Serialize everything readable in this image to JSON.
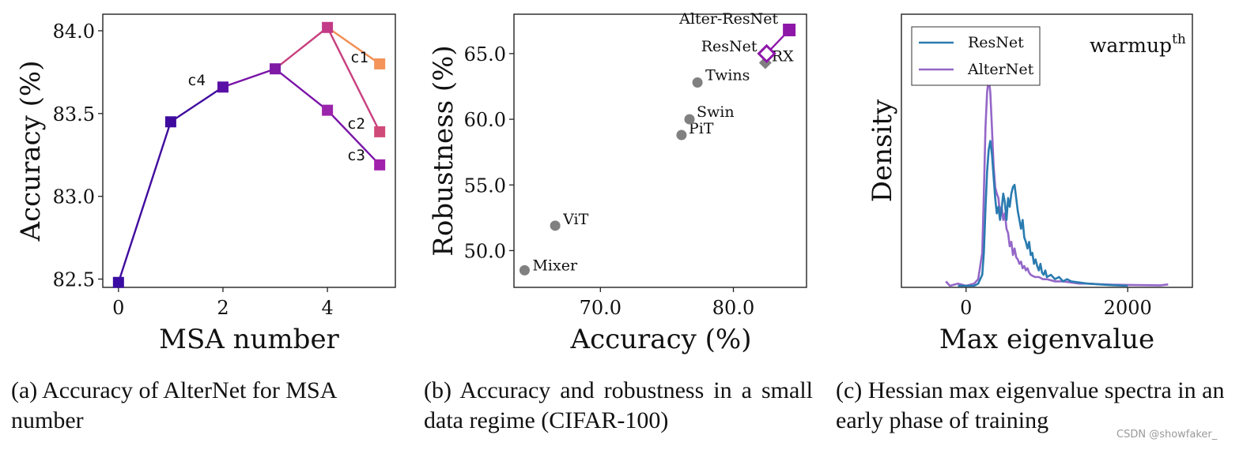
{
  "chart_data": [
    {
      "type": "line",
      "panel": "a",
      "xlabel": "MSA number",
      "ylabel": "Accuracy (%)",
      "xlim": [
        -0.3,
        5.3
      ],
      "ylim": [
        82.45,
        84.1
      ],
      "xticks": [
        "0",
        "2",
        "4"
      ],
      "xtick_values": [
        0,
        2,
        4
      ],
      "yticks": [
        "82.5",
        "83.0",
        "83.5",
        "84.0"
      ],
      "ytick_values": [
        82.5,
        83.0,
        83.5,
        84.0
      ],
      "series": [
        {
          "name": "c4",
          "color": "#3f0b9e",
          "x": [
            0,
            1,
            2
          ],
          "values": [
            82.48,
            83.45,
            83.66
          ]
        },
        {
          "name": "c3",
          "color": "#7a14a8",
          "x": [
            2,
            3,
            4,
            5
          ],
          "values": [
            83.66,
            83.77,
            83.52,
            83.19
          ]
        },
        {
          "name": "c2",
          "color": "#c7407e",
          "x": [
            3,
            4,
            5
          ],
          "values": [
            83.77,
            84.02,
            83.39
          ]
        },
        {
          "name": "c1",
          "color": "#f08d52",
          "x": [
            4,
            5
          ],
          "values": [
            84.02,
            83.8
          ]
        }
      ],
      "markers": [
        {
          "x": 0,
          "y": 82.48,
          "color": "#3a0ca3"
        },
        {
          "x": 1,
          "y": 83.45,
          "color": "#3f0b9e"
        },
        {
          "x": 2,
          "y": 83.66,
          "color": "#5a10a6"
        },
        {
          "x": 3,
          "y": 83.77,
          "color": "#7e1aa6"
        },
        {
          "x": 4,
          "y": 83.52,
          "color": "#9a24ab"
        },
        {
          "x": 4,
          "y": 84.02,
          "color": "#c33a86"
        },
        {
          "x": 5,
          "y": 83.19,
          "color": "#a021ac"
        },
        {
          "x": 5,
          "y": 83.39,
          "color": "#d04a79"
        },
        {
          "x": 5,
          "y": 83.8,
          "color": "#f4935a"
        }
      ],
      "labels": [
        "c1",
        "c2",
        "c3",
        "c4"
      ]
    },
    {
      "type": "scatter",
      "panel": "b",
      "xlabel": "Accuracy (%)",
      "ylabel": "Robustness (%)",
      "xlim": [
        63.5,
        85.5
      ],
      "ylim": [
        47.2,
        68.0
      ],
      "xticks": [
        "70.0",
        "80.0"
      ],
      "xtick_values": [
        70.0,
        80.0
      ],
      "yticks": [
        "50.0",
        "55.0",
        "60.0",
        "65.0"
      ],
      "ytick_values": [
        50.0,
        55.0,
        60.0,
        65.0
      ],
      "points": [
        {
          "label": "Mixer",
          "x": 64.3,
          "y": 48.5,
          "color": "#808080"
        },
        {
          "label": "ViT",
          "x": 66.6,
          "y": 51.9,
          "color": "#808080"
        },
        {
          "label": "PiT",
          "x": 76.1,
          "y": 58.8,
          "color": "#808080"
        },
        {
          "label": "Swin",
          "x": 76.7,
          "y": 60.0,
          "color": "#808080"
        },
        {
          "label": "Twins",
          "x": 77.3,
          "y": 62.8,
          "color": "#808080"
        },
        {
          "label": "RX",
          "x": 82.4,
          "y": 64.3,
          "color": "#808080"
        },
        {
          "label": "ResNet",
          "x": 82.5,
          "y": 65.0,
          "color": "#8e17a8"
        },
        {
          "label": "Alter-ResNet",
          "x": 84.2,
          "y": 66.8,
          "color": "#8e17a8"
        }
      ]
    },
    {
      "type": "line",
      "panel": "c",
      "xlabel": "Max eigenvalue",
      "ylabel": "Density",
      "annotation": "warmup",
      "annotation_sup": "th",
      "xlim": [
        -800,
        2800
      ],
      "ylim": [
        0,
        1.0
      ],
      "xticks": [
        "0",
        "2000"
      ],
      "xtick_values": [
        0,
        2000
      ],
      "series": [
        {
          "name": "ResNet",
          "color": "#2a7bb0",
          "x": [
            -100,
            0,
            100,
            150,
            200,
            220,
            240,
            260,
            280,
            300,
            320,
            340,
            360,
            380,
            400,
            420,
            440,
            460,
            480,
            500,
            520,
            540,
            560,
            580,
            600,
            620,
            640,
            660,
            680,
            700,
            720,
            740,
            760,
            780,
            800,
            820,
            840,
            860,
            880,
            900,
            920,
            940,
            960,
            980,
            1000,
            1050,
            1100,
            1150,
            1200,
            1250,
            1300,
            1400,
            1500,
            1600,
            1700,
            1800,
            2000
          ],
          "values": [
            0,
            0,
            0,
            0.01,
            0.05,
            0.15,
            0.35,
            0.52,
            0.62,
            0.66,
            0.6,
            0.5,
            0.4,
            0.33,
            0.36,
            0.3,
            0.35,
            0.42,
            0.38,
            0.3,
            0.4,
            0.36,
            0.42,
            0.45,
            0.46,
            0.4,
            0.34,
            0.3,
            0.26,
            0.3,
            0.22,
            0.2,
            0.17,
            0.2,
            0.14,
            0.15,
            0.1,
            0.12,
            0.09,
            0.07,
            0.1,
            0.06,
            0.05,
            0.07,
            0.04,
            0.05,
            0.03,
            0.04,
            0.02,
            0.03,
            0.02,
            0.015,
            0.01,
            0.008,
            0.005,
            0.003,
            0.0
          ]
        },
        {
          "name": "AlterNet",
          "color": "#9467c8",
          "x": [
            -250,
            -200,
            -100,
            0,
            100,
            150,
            200,
            220,
            240,
            260,
            280,
            300,
            320,
            340,
            360,
            380,
            400,
            420,
            440,
            460,
            480,
            500,
            520,
            540,
            560,
            580,
            600,
            620,
            640,
            660,
            680,
            700,
            720,
            740,
            760,
            780,
            800,
            850,
            900,
            950,
            1000,
            1100,
            1200,
            1300,
            1400,
            1500,
            1600,
            1800,
            2000,
            2200,
            2400,
            2500
          ],
          "values": [
            0.02,
            0.0,
            0.01,
            0.0,
            0.01,
            0.03,
            0.15,
            0.42,
            0.72,
            0.88,
            0.95,
            0.88,
            0.72,
            0.55,
            0.45,
            0.42,
            0.4,
            0.33,
            0.36,
            0.3,
            0.33,
            0.26,
            0.24,
            0.18,
            0.2,
            0.14,
            0.17,
            0.13,
            0.12,
            0.1,
            0.11,
            0.08,
            0.09,
            0.07,
            0.08,
            0.06,
            0.05,
            0.04,
            0.04,
            0.03,
            0.03,
            0.02,
            0.02,
            0.015,
            0.01,
            0.01,
            0.008,
            0.005,
            0.004,
            0.003,
            0.002,
            0.006
          ]
        }
      ]
    }
  ],
  "captions": {
    "a": "(a) Accuracy of AlterNet for MSA number",
    "b": "(b) Accuracy and robustness in a small data regime (CIFAR-100)",
    "c": "(c) Hessian max eigenvalue spectra in an early phase of training"
  },
  "watermark": "CSDN @showfaker_"
}
